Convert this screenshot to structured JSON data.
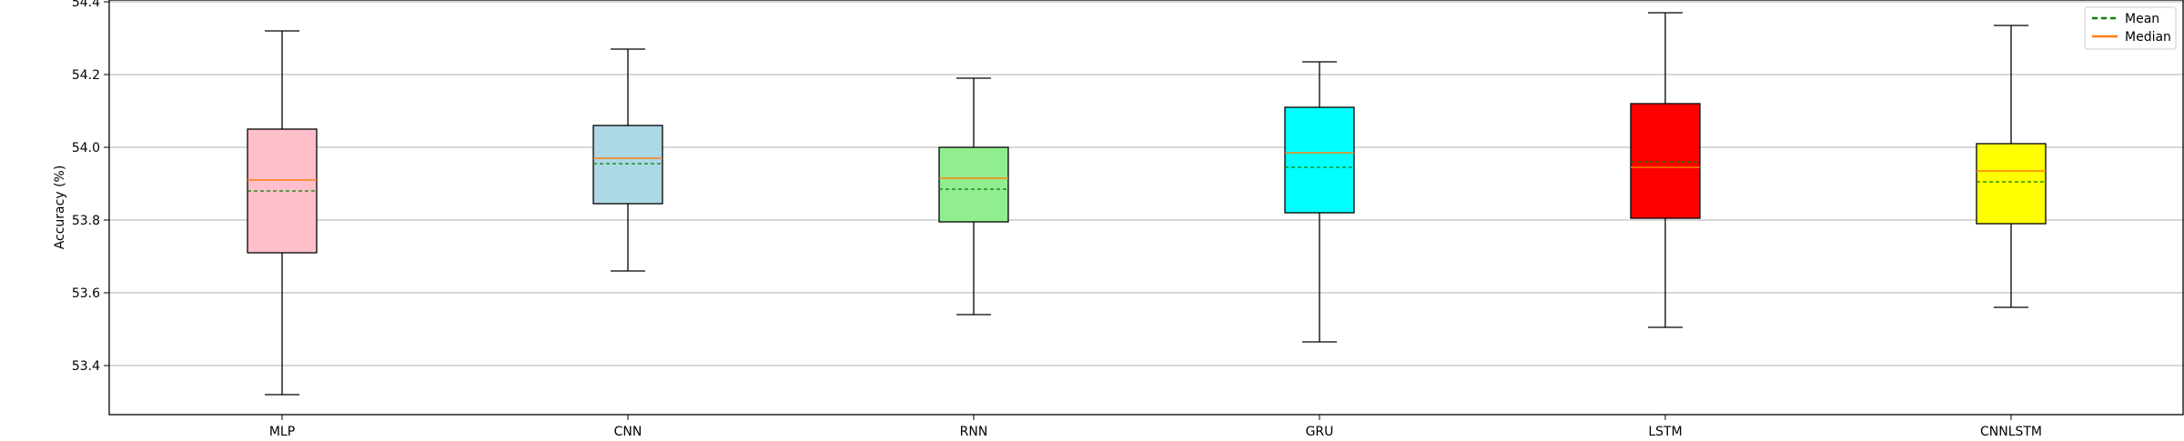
{
  "chart_data": {
    "type": "box",
    "ylabel": "Accuracy (%)",
    "xlabel": "",
    "title": "",
    "ylim": [
      53.265,
      54.405
    ],
    "yticks": [
      "53.4",
      "53.6",
      "53.8",
      "54.0",
      "54.2",
      "54.4"
    ],
    "grid": "y",
    "legend": {
      "placement": "top-right",
      "entries": [
        {
          "label": "Mean",
          "style": "dashed",
          "color": "#008000"
        },
        {
          "label": "Median",
          "style": "solid",
          "color": "#ff7f0e"
        }
      ]
    },
    "categories": [
      "MLP",
      "CNN",
      "RNN",
      "GRU",
      "LSTM",
      "CNNLSTM"
    ],
    "boxes": [
      {
        "label": "MLP",
        "color": "#ffc0cb",
        "whisker_low": 53.32,
        "q1": 53.71,
        "median": 53.91,
        "mean": 53.88,
        "q3": 54.05,
        "whisker_high": 54.32
      },
      {
        "label": "CNN",
        "color": "#add8e6",
        "whisker_low": 53.66,
        "q1": 53.845,
        "median": 53.97,
        "mean": 53.955,
        "q3": 54.06,
        "whisker_high": 54.27
      },
      {
        "label": "RNN",
        "color": "#90ee90",
        "whisker_low": 53.54,
        "q1": 53.795,
        "median": 53.915,
        "mean": 53.885,
        "q3": 54.0,
        "whisker_high": 54.19
      },
      {
        "label": "GRU",
        "color": "#00ffff",
        "whisker_low": 53.465,
        "q1": 53.82,
        "median": 53.985,
        "mean": 53.945,
        "q3": 54.11,
        "whisker_high": 54.235
      },
      {
        "label": "LSTM",
        "color": "#ff0000",
        "whisker_low": 53.505,
        "q1": 53.805,
        "median": 53.945,
        "mean": 53.96,
        "q3": 54.12,
        "whisker_high": 54.37
      },
      {
        "label": "CNNLSTM",
        "color": "#ffff00",
        "whisker_low": 53.56,
        "q1": 53.79,
        "median": 53.935,
        "mean": 53.905,
        "q3": 54.01,
        "whisker_high": 54.335
      }
    ]
  }
}
